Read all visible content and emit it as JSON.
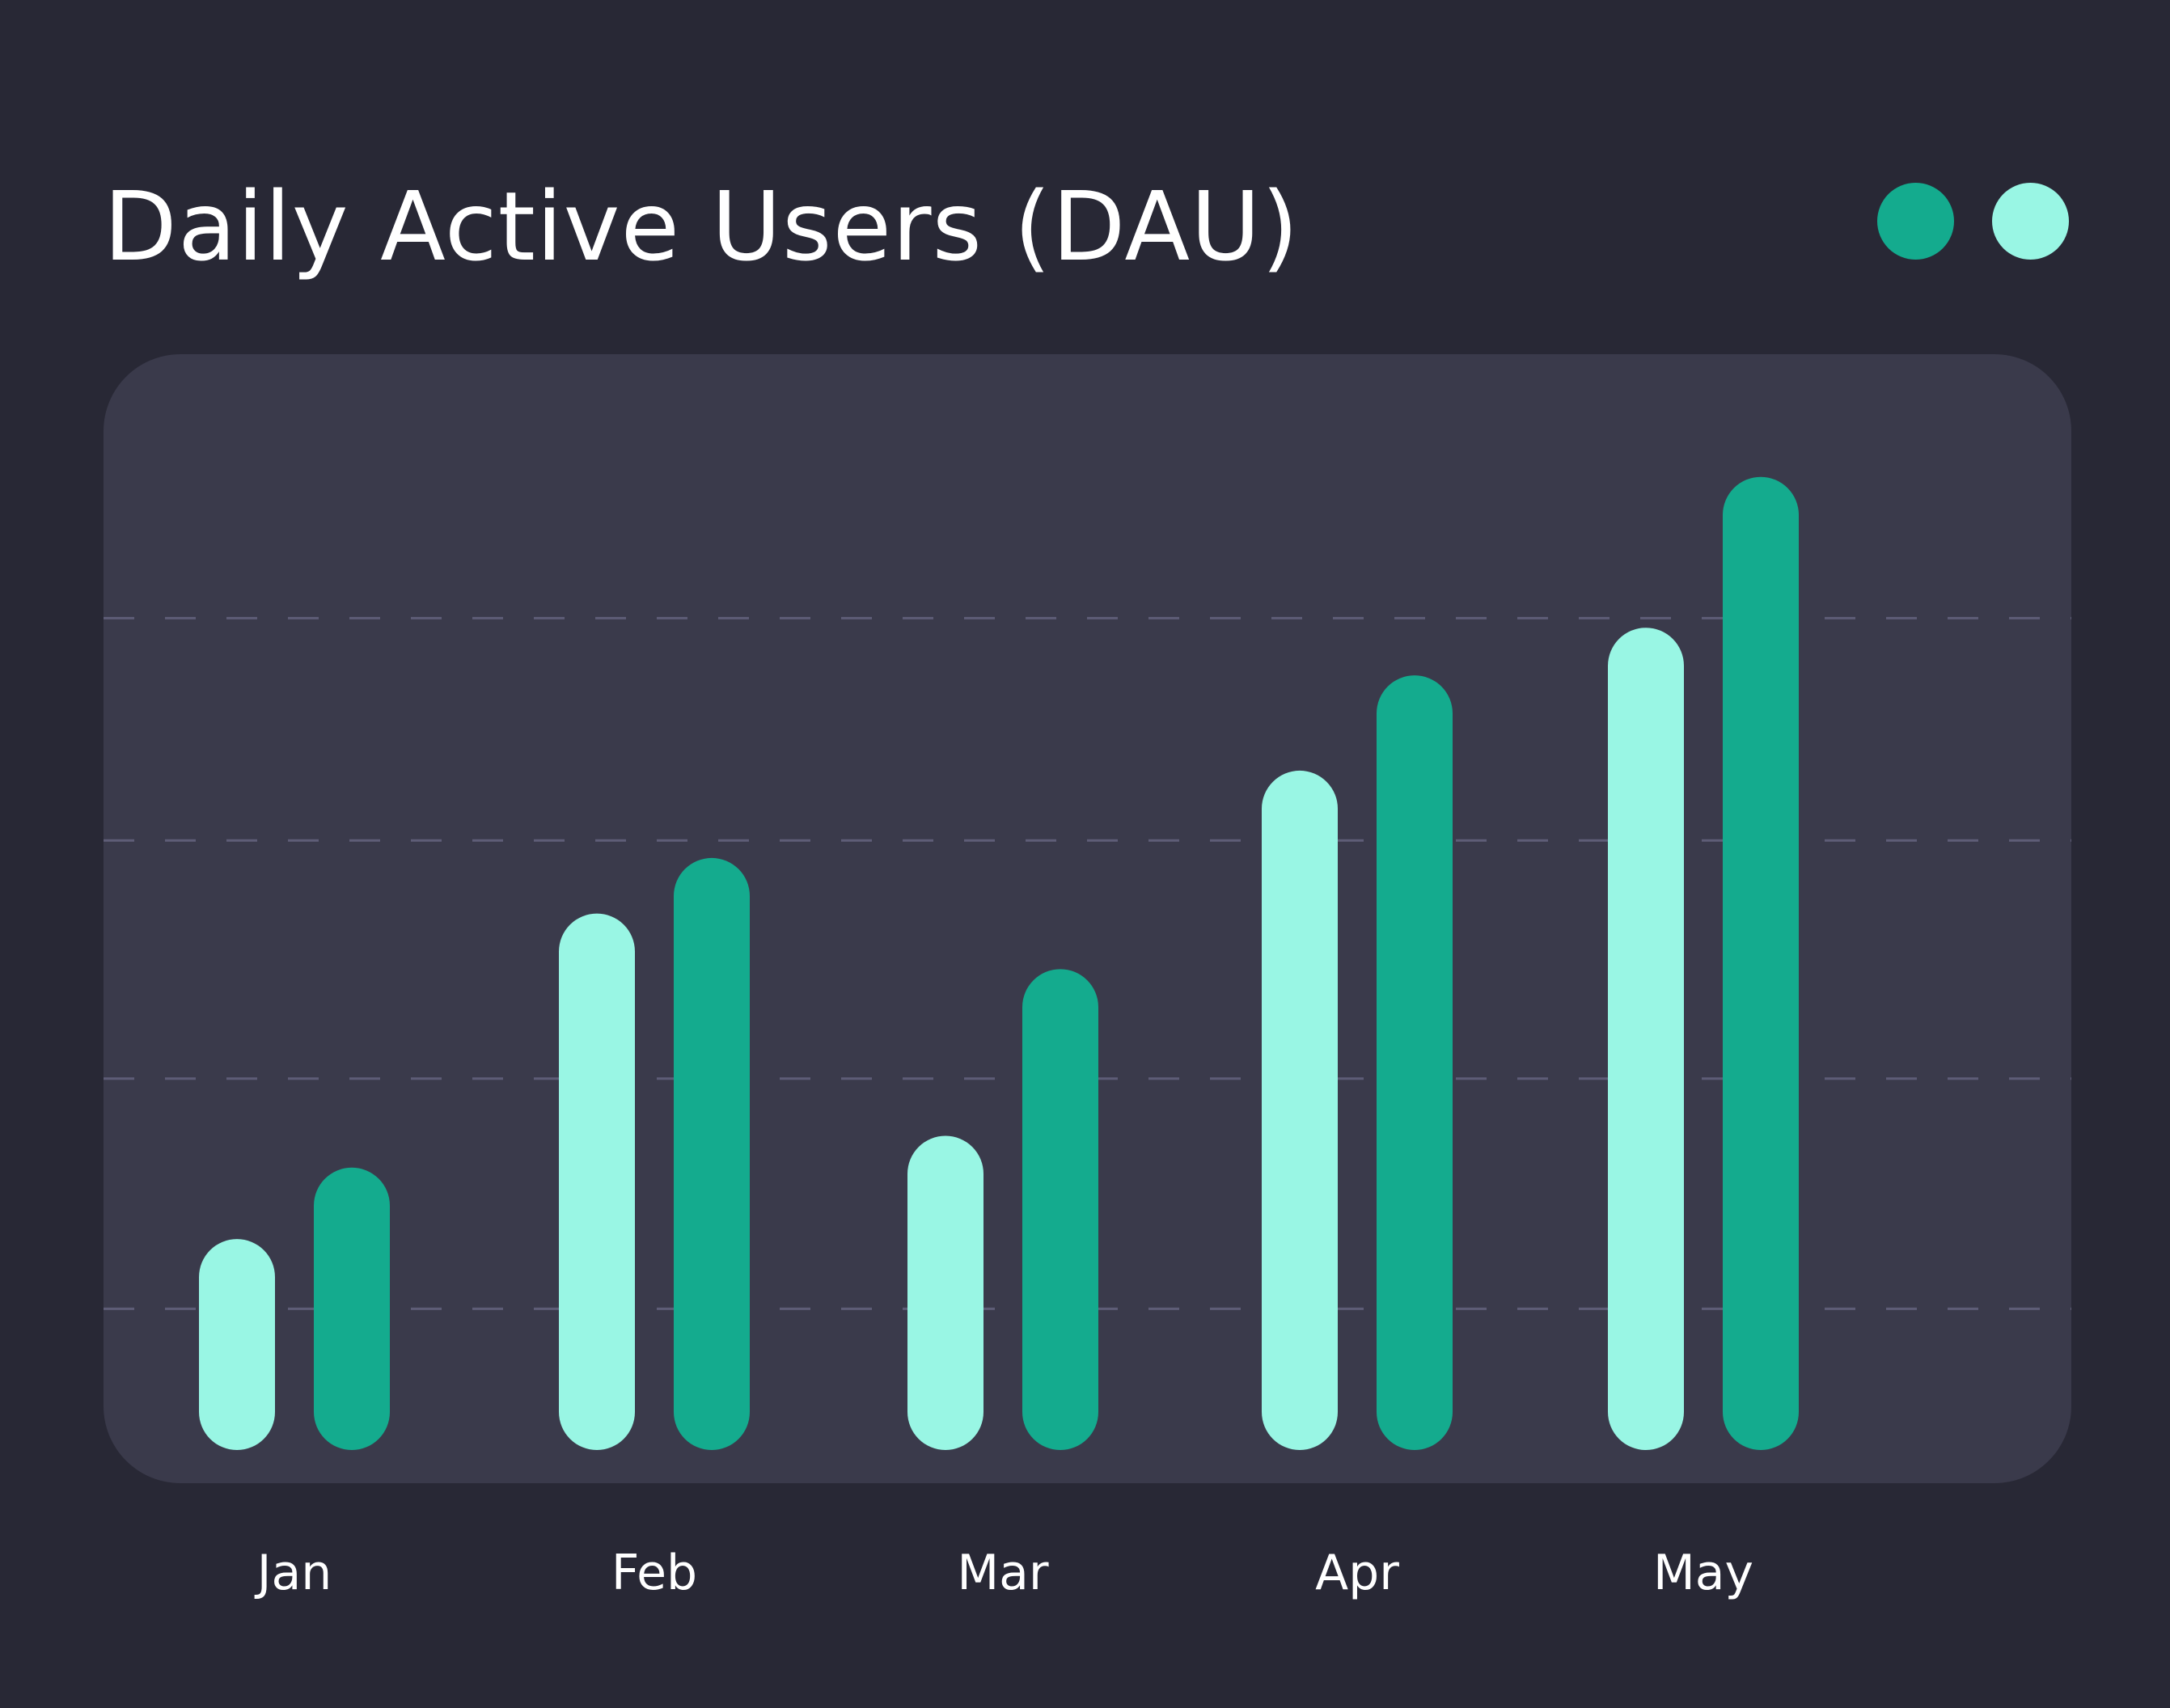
{
  "chart_data": {
    "type": "bar",
    "title": "Daily Active Users (DAU)",
    "categories": [
      "Jan",
      "Feb",
      "Mar",
      "Apr",
      "May"
    ],
    "series": [
      {
        "color": "#99f6e4",
        "values": [
          1.7,
          5.8,
          3.0,
          7.6,
          9.4
        ]
      },
      {
        "color": "#14ab8e",
        "values": [
          2.6,
          6.5,
          5.1,
          8.8,
          11.3
        ]
      }
    ],
    "ylim": [
      0,
      12
    ],
    "gridlines": [
      1.3,
      4.2,
      7.2,
      10.0
    ],
    "grid": true,
    "legend": "top-right",
    "xlabel": "",
    "ylabel": ""
  },
  "colors": {
    "background": "#282835",
    "plot_panel": "#3a3a4b",
    "gridline": "#5e5d77",
    "text": "#ffffff"
  }
}
